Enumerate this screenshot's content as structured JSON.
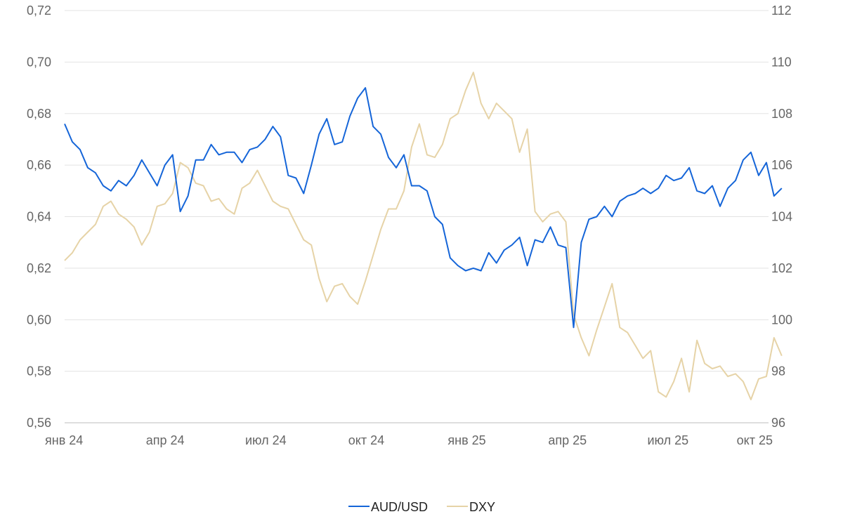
{
  "chart_data": {
    "type": "line",
    "title": "",
    "xlabel": "",
    "ylabel_left": "",
    "ylabel_right": "",
    "x_ticks": [
      "янв 24",
      "апр 24",
      "июл 24",
      "окт 24",
      "янв 25",
      "апр 25",
      "июл 25",
      "окт 25"
    ],
    "x_range": [
      "2024-01-01",
      "2025-10-01"
    ],
    "y_left": {
      "range": [
        0.56,
        0.72
      ],
      "ticks": [
        "0,72",
        "0,70",
        "0,68",
        "0,66",
        "0,64",
        "0,62",
        "0,60",
        "0,58",
        "0,56"
      ]
    },
    "y_right": {
      "range": [
        96,
        112
      ],
      "ticks": [
        "112",
        "110",
        "108",
        "106",
        "104",
        "102",
        "100",
        "98",
        "96"
      ]
    },
    "grid": "horizontal",
    "legend_position": "bottom-center",
    "series": [
      {
        "name": "AUD/USD",
        "axis": "left",
        "color": "#1565d8",
        "points": [
          [
            "2024-01-01",
            0.676
          ],
          [
            "2024-01-08",
            0.669
          ],
          [
            "2024-01-15",
            0.666
          ],
          [
            "2024-01-22",
            0.659
          ],
          [
            "2024-01-29",
            0.657
          ],
          [
            "2024-02-05",
            0.652
          ],
          [
            "2024-02-12",
            0.65
          ],
          [
            "2024-02-19",
            0.654
          ],
          [
            "2024-02-26",
            0.652
          ],
          [
            "2024-03-04",
            0.656
          ],
          [
            "2024-03-11",
            0.662
          ],
          [
            "2024-03-18",
            0.657
          ],
          [
            "2024-03-25",
            0.652
          ],
          [
            "2024-04-01",
            0.66
          ],
          [
            "2024-04-08",
            0.664
          ],
          [
            "2024-04-15",
            0.642
          ],
          [
            "2024-04-22",
            0.648
          ],
          [
            "2024-04-29",
            0.662
          ],
          [
            "2024-05-06",
            0.662
          ],
          [
            "2024-05-13",
            0.668
          ],
          [
            "2024-05-20",
            0.664
          ],
          [
            "2024-05-27",
            0.665
          ],
          [
            "2024-06-03",
            0.665
          ],
          [
            "2024-06-10",
            0.661
          ],
          [
            "2024-06-17",
            0.666
          ],
          [
            "2024-06-24",
            0.667
          ],
          [
            "2024-07-01",
            0.67
          ],
          [
            "2024-07-08",
            0.675
          ],
          [
            "2024-07-15",
            0.671
          ],
          [
            "2024-07-22",
            0.656
          ],
          [
            "2024-07-29",
            0.655
          ],
          [
            "2024-08-05",
            0.649
          ],
          [
            "2024-08-12",
            0.66
          ],
          [
            "2024-08-19",
            0.672
          ],
          [
            "2024-08-26",
            0.678
          ],
          [
            "2024-09-02",
            0.668
          ],
          [
            "2024-09-09",
            0.669
          ],
          [
            "2024-09-16",
            0.679
          ],
          [
            "2024-09-23",
            0.686
          ],
          [
            "2024-09-30",
            0.69
          ],
          [
            "2024-10-07",
            0.675
          ],
          [
            "2024-10-14",
            0.672
          ],
          [
            "2024-10-21",
            0.663
          ],
          [
            "2024-10-28",
            0.659
          ],
          [
            "2024-11-04",
            0.664
          ],
          [
            "2024-11-11",
            0.652
          ],
          [
            "2024-11-18",
            0.652
          ],
          [
            "2024-11-25",
            0.65
          ],
          [
            "2024-12-02",
            0.64
          ],
          [
            "2024-12-09",
            0.637
          ],
          [
            "2024-12-16",
            0.624
          ],
          [
            "2024-12-23",
            0.621
          ],
          [
            "2024-12-30",
            0.619
          ],
          [
            "2025-01-06",
            0.62
          ],
          [
            "2025-01-13",
            0.619
          ],
          [
            "2025-01-20",
            0.626
          ],
          [
            "2025-01-27",
            0.622
          ],
          [
            "2025-02-03",
            0.627
          ],
          [
            "2025-02-10",
            0.629
          ],
          [
            "2025-02-17",
            0.632
          ],
          [
            "2025-02-24",
            0.621
          ],
          [
            "2025-03-03",
            0.631
          ],
          [
            "2025-03-10",
            0.63
          ],
          [
            "2025-03-17",
            0.636
          ],
          [
            "2025-03-24",
            0.629
          ],
          [
            "2025-03-31",
            0.628
          ],
          [
            "2025-04-07",
            0.597
          ],
          [
            "2025-04-14",
            0.63
          ],
          [
            "2025-04-21",
            0.639
          ],
          [
            "2025-04-28",
            0.64
          ],
          [
            "2025-05-05",
            0.644
          ],
          [
            "2025-05-12",
            0.64
          ],
          [
            "2025-05-19",
            0.646
          ],
          [
            "2025-05-26",
            0.648
          ],
          [
            "2025-06-02",
            0.649
          ],
          [
            "2025-06-09",
            0.651
          ],
          [
            "2025-06-16",
            0.649
          ],
          [
            "2025-06-23",
            0.651
          ],
          [
            "2025-06-30",
            0.656
          ],
          [
            "2025-07-07",
            0.654
          ],
          [
            "2025-07-14",
            0.655
          ],
          [
            "2025-07-21",
            0.659
          ],
          [
            "2025-07-28",
            0.65
          ],
          [
            "2025-08-04",
            0.649
          ],
          [
            "2025-08-11",
            0.652
          ],
          [
            "2025-08-18",
            0.644
          ],
          [
            "2025-08-25",
            0.651
          ],
          [
            "2025-09-01",
            0.654
          ],
          [
            "2025-09-08",
            0.662
          ],
          [
            "2025-09-15",
            0.665
          ],
          [
            "2025-09-22",
            0.656
          ],
          [
            "2025-09-29",
            0.661
          ],
          [
            "2025-10-06",
            0.648
          ],
          [
            "2025-10-13",
            0.651
          ]
        ]
      },
      {
        "name": "DXY",
        "axis": "right",
        "color": "#e6d3a7",
        "points": [
          [
            "2024-01-01",
            102.3
          ],
          [
            "2024-01-08",
            102.6
          ],
          [
            "2024-01-15",
            103.1
          ],
          [
            "2024-01-22",
            103.4
          ],
          [
            "2024-01-29",
            103.7
          ],
          [
            "2024-02-05",
            104.4
          ],
          [
            "2024-02-12",
            104.6
          ],
          [
            "2024-02-19",
            104.1
          ],
          [
            "2024-02-26",
            103.9
          ],
          [
            "2024-03-04",
            103.6
          ],
          [
            "2024-03-11",
            102.9
          ],
          [
            "2024-03-18",
            103.4
          ],
          [
            "2024-03-25",
            104.4
          ],
          [
            "2024-04-01",
            104.5
          ],
          [
            "2024-04-08",
            104.9
          ],
          [
            "2024-04-15",
            106.1
          ],
          [
            "2024-04-22",
            105.9
          ],
          [
            "2024-04-29",
            105.3
          ],
          [
            "2024-05-06",
            105.2
          ],
          [
            "2024-05-13",
            104.6
          ],
          [
            "2024-05-20",
            104.7
          ],
          [
            "2024-05-27",
            104.3
          ],
          [
            "2024-06-03",
            104.1
          ],
          [
            "2024-06-10",
            105.1
          ],
          [
            "2024-06-17",
            105.3
          ],
          [
            "2024-06-24",
            105.8
          ],
          [
            "2024-07-01",
            105.2
          ],
          [
            "2024-07-08",
            104.6
          ],
          [
            "2024-07-15",
            104.4
          ],
          [
            "2024-07-22",
            104.3
          ],
          [
            "2024-08-05",
            103.1
          ],
          [
            "2024-08-12",
            102.9
          ],
          [
            "2024-08-19",
            101.6
          ],
          [
            "2024-08-26",
            100.7
          ],
          [
            "2024-09-02",
            101.3
          ],
          [
            "2024-09-09",
            101.4
          ],
          [
            "2024-09-16",
            100.9
          ],
          [
            "2024-09-23",
            100.6
          ],
          [
            "2024-09-30",
            101.5
          ],
          [
            "2024-10-07",
            102.5
          ],
          [
            "2024-10-14",
            103.5
          ],
          [
            "2024-10-21",
            104.3
          ],
          [
            "2024-10-28",
            104.3
          ],
          [
            "2024-11-04",
            105.0
          ],
          [
            "2024-11-11",
            106.7
          ],
          [
            "2024-11-18",
            107.6
          ],
          [
            "2024-11-25",
            106.4
          ],
          [
            "2024-12-02",
            106.3
          ],
          [
            "2024-12-09",
            106.8
          ],
          [
            "2024-12-16",
            107.8
          ],
          [
            "2024-12-23",
            108.0
          ],
          [
            "2024-12-30",
            108.9
          ],
          [
            "2025-01-06",
            109.6
          ],
          [
            "2025-01-13",
            108.4
          ],
          [
            "2025-01-20",
            107.8
          ],
          [
            "2025-01-27",
            108.4
          ],
          [
            "2025-02-03",
            108.1
          ],
          [
            "2025-02-10",
            107.8
          ],
          [
            "2025-02-17",
            106.5
          ],
          [
            "2025-02-24",
            107.4
          ],
          [
            "2025-03-03",
            104.2
          ],
          [
            "2025-03-10",
            103.8
          ],
          [
            "2025-03-17",
            104.1
          ],
          [
            "2025-03-24",
            104.2
          ],
          [
            "2025-03-31",
            103.8
          ],
          [
            "2025-04-07",
            100.2
          ],
          [
            "2025-04-14",
            99.3
          ],
          [
            "2025-04-21",
            98.6
          ],
          [
            "2025-04-28",
            99.6
          ],
          [
            "2025-05-05",
            100.5
          ],
          [
            "2025-05-12",
            101.4
          ],
          [
            "2025-05-19",
            99.7
          ],
          [
            "2025-05-26",
            99.5
          ],
          [
            "2025-06-02",
            99.0
          ],
          [
            "2025-06-09",
            98.5
          ],
          [
            "2025-06-16",
            98.8
          ],
          [
            "2025-06-23",
            97.2
          ],
          [
            "2025-06-30",
            97.0
          ],
          [
            "2025-07-07",
            97.6
          ],
          [
            "2025-07-14",
            98.5
          ],
          [
            "2025-07-21",
            97.2
          ],
          [
            "2025-07-28",
            99.2
          ],
          [
            "2025-08-04",
            98.3
          ],
          [
            "2025-08-11",
            98.1
          ],
          [
            "2025-08-18",
            98.2
          ],
          [
            "2025-08-25",
            97.8
          ],
          [
            "2025-09-01",
            97.9
          ],
          [
            "2025-09-08",
            97.6
          ],
          [
            "2025-09-15",
            96.9
          ],
          [
            "2025-09-22",
            97.7
          ],
          [
            "2025-09-29",
            97.8
          ],
          [
            "2025-10-06",
            99.3
          ],
          [
            "2025-10-13",
            98.6
          ]
        ]
      }
    ]
  }
}
